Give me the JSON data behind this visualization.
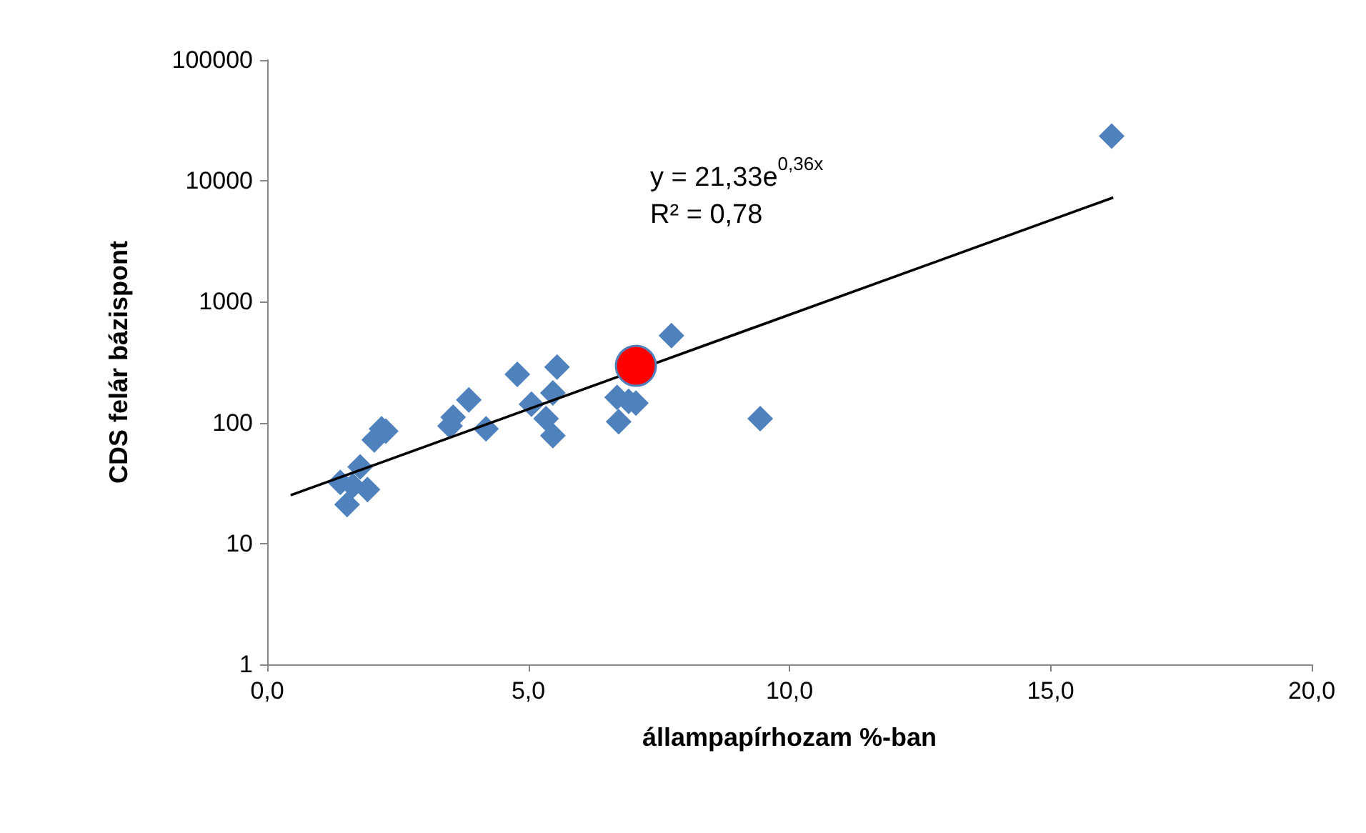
{
  "chart_data": {
    "type": "scatter",
    "xlabel": "állampapírhozam %-ban",
    "ylabel": "CDS felár bázispont",
    "annotations": [
      "y = 21,33e$^{0,36x}$",
      "R² = 0,78"
    ],
    "log": "y",
    "grid": false,
    "xlim": [
      0,
      20
    ],
    "xticks": [
      {
        "value": 0,
        "label": "0,0"
      },
      {
        "value": 5,
        "label": "5,0"
      },
      {
        "value": 10,
        "label": "10,0"
      },
      {
        "value": 15,
        "label": "15,0"
      },
      {
        "value": 20,
        "label": "20,0"
      }
    ],
    "ylim": [
      1,
      100000
    ],
    "yticks": [
      1,
      10,
      100,
      1000,
      10000,
      100000
    ],
    "series": [
      {
        "color": "#4f81bd",
        "marker": "diamond",
        "x": [
          1.53,
          1.64,
          1.4,
          1.92,
          1.78,
          2.05,
          2.27,
          2.19,
          3.56,
          3.5,
          3.86,
          4.19,
          4.79,
          5.55,
          5.06,
          5.47,
          5.34,
          5.47,
          6.7,
          7.06,
          6.73,
          6.92,
          7.74,
          9.44,
          16.17
        ],
        "values": [
          21,
          30,
          32,
          28,
          43,
          72,
          85,
          89,
          111,
          94,
          154,
          89,
          251,
          288,
          142,
          176,
          108,
          78,
          162,
          145,
          102,
          150,
          525,
          108,
          23500
        ]
      },
      {
        "color": "#ff0000",
        "marker": "circle",
        "x": [
          7.06
        ],
        "values": [
          295
        ]
      },
      {
        "type": "line",
        "color": "#000000",
        "marker": "none",
        "line_style": "solid",
        "x": [
          0.45,
          16.2
        ],
        "values": [
          25.1,
          7280
        ]
      }
    ]
  }
}
